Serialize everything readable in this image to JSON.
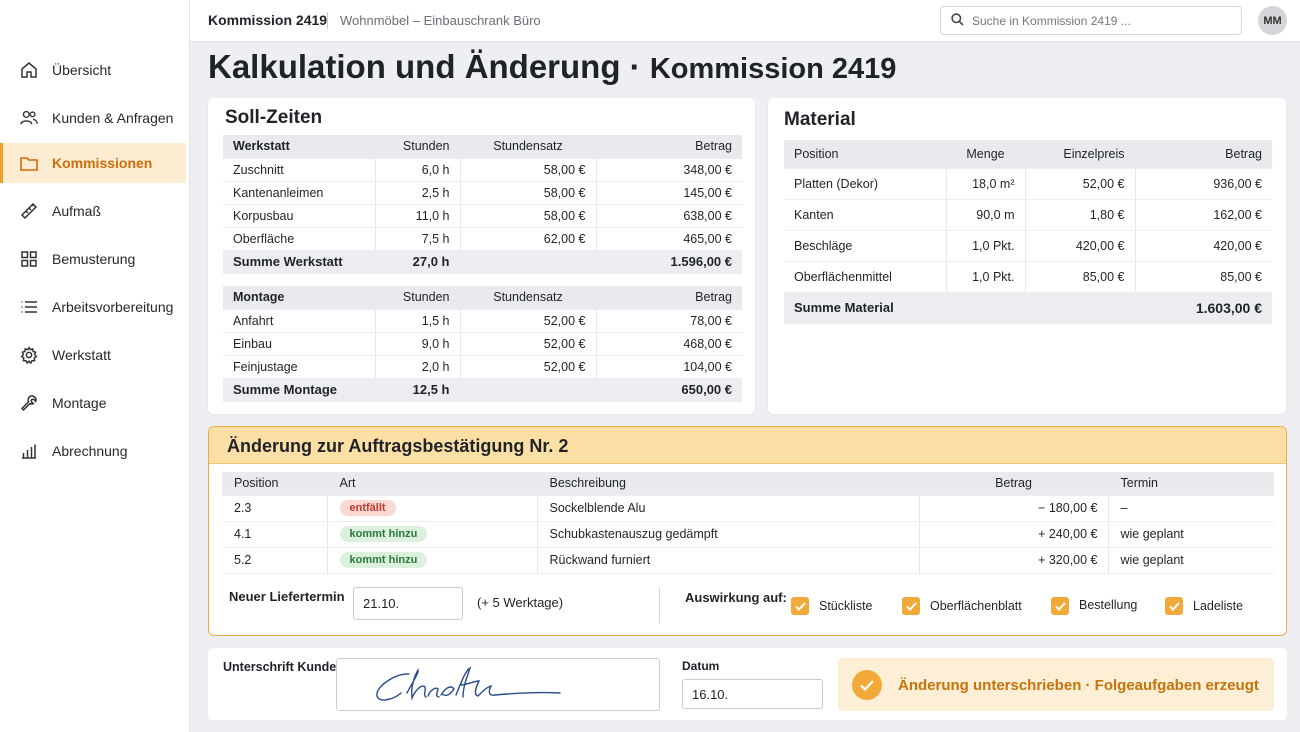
{
  "topbar": {
    "title": "Kommission 2419",
    "subtitle": "Wohnmöbel – Einbauschrank Büro",
    "search_placeholder": "Suche in Kommission 2419 ...",
    "avatar": "MM"
  },
  "sidebar": {
    "items": [
      {
        "label": "Übersicht",
        "icon": "home-icon"
      },
      {
        "label": "Kunden & Anfragen",
        "icon": "users-icon"
      },
      {
        "label": "Kommissionen",
        "icon": "folder-icon",
        "active": true
      },
      {
        "label": "Aufmaß",
        "icon": "ruler-icon"
      },
      {
        "label": "Bemusterung",
        "icon": "grid-icon"
      },
      {
        "label": "Arbeitsvorbereitung",
        "icon": "list-icon"
      },
      {
        "label": "Werkstatt",
        "icon": "gear-icon"
      },
      {
        "label": "Montage",
        "icon": "wrench-icon"
      },
      {
        "label": "Abrechnung",
        "icon": "bar-chart-icon"
      }
    ]
  },
  "page": {
    "title": "Kalkulation und Änderung",
    "separator": "·",
    "subtitle": "Kommission 2419"
  },
  "soll": {
    "title": "Soll-Zeiten",
    "werkstatt": {
      "headers": [
        "Werkstatt",
        "Stunden",
        "Stundensatz",
        "Betrag"
      ],
      "rows": [
        [
          "Zuschnitt",
          "6,0 h",
          "58,00 €",
          "348,00 €"
        ],
        [
          "Kantenanleimen",
          "2,5 h",
          "58,00 €",
          "145,00 €"
        ],
        [
          "Korpusbau",
          "11,0 h",
          "58,00 €",
          "638,00 €"
        ],
        [
          "Oberfläche",
          "7,5 h",
          "62,00 €",
          "465,00 €"
        ]
      ],
      "sum": [
        "Summe Werkstatt",
        "27,0 h",
        "",
        "1.596,00 €"
      ]
    },
    "montage": {
      "headers": [
        "Montage",
        "Stunden",
        "Stundensatz",
        "Betrag"
      ],
      "rows": [
        [
          "Anfahrt",
          "1,5 h",
          "52,00 €",
          "78,00 €"
        ],
        [
          "Einbau",
          "9,0 h",
          "52,00 €",
          "468,00 €"
        ],
        [
          "Feinjustage",
          "2,0 h",
          "52,00 €",
          "104,00 €"
        ]
      ],
      "sum": [
        "Summe Montage",
        "12,5 h",
        "",
        "650,00 €"
      ]
    }
  },
  "material": {
    "title": "Material",
    "headers": [
      "Position",
      "Menge",
      "Einzelpreis",
      "Betrag"
    ],
    "rows": [
      [
        "Platten (Dekor)",
        "18,0 m²",
        "52,00 €",
        "936,00 €"
      ],
      [
        "Kanten",
        "90,0 m",
        "1,80 €",
        "162,00 €"
      ],
      [
        "Beschläge",
        "1,0 Pkt.",
        "420,00 €",
        "420,00 €"
      ],
      [
        "Oberflächenmittel",
        "1,0 Pkt.",
        "85,00 €",
        "85,00 €"
      ]
    ],
    "sum": [
      "Summe Material",
      "1.603,00 €"
    ]
  },
  "change": {
    "title": "Änderung zur Auftragsbestätigung Nr. 2",
    "headers": [
      "Position",
      "Art",
      "Beschreibung",
      "Betrag",
      "Termin"
    ],
    "rows": [
      {
        "pos": "2.3",
        "art": "entfällt",
        "art_color": "#c23b2b",
        "desc": "Sockelblende Alu",
        "amount": "− 180,00 €",
        "termin": "–"
      },
      {
        "pos": "4.1",
        "art": "kommt hinzu",
        "art_color": "#2a7a3a",
        "desc": "Schubkastenauszug gedämpft",
        "amount": "+ 240,00 €",
        "termin": "wie geplant"
      },
      {
        "pos": "5.2",
        "art": "kommt hinzu",
        "art_color": "#2a7a3a",
        "desc": "Rückwand furniert",
        "amount": "+ 320,00 €",
        "termin": "wie geplant"
      }
    ],
    "delivery_label": "Neuer Liefertermin",
    "delivery_value": "21.10.",
    "delivery_note": "(+ 5 Werktage)",
    "impact_label": "Auswirkung auf:",
    "impacts": [
      {
        "label": "Stückliste",
        "checked": true
      },
      {
        "label": "Oberflächenblatt",
        "checked": true
      },
      {
        "label": "Bestellung",
        "checked": true
      },
      {
        "label": "Ladeliste",
        "checked": true
      }
    ]
  },
  "signature": {
    "label": "Unterschrift Kunde",
    "date_label": "Datum",
    "date_value": "16.10.",
    "success_text": "Änderung unterschrieben · Folgeaufgaben erzeugt"
  },
  "colors": {
    "accent": "#f0a030",
    "accent_light": "#fcdfa5",
    "active_text": "#cf6d0b",
    "success_text": "#c8720a"
  }
}
